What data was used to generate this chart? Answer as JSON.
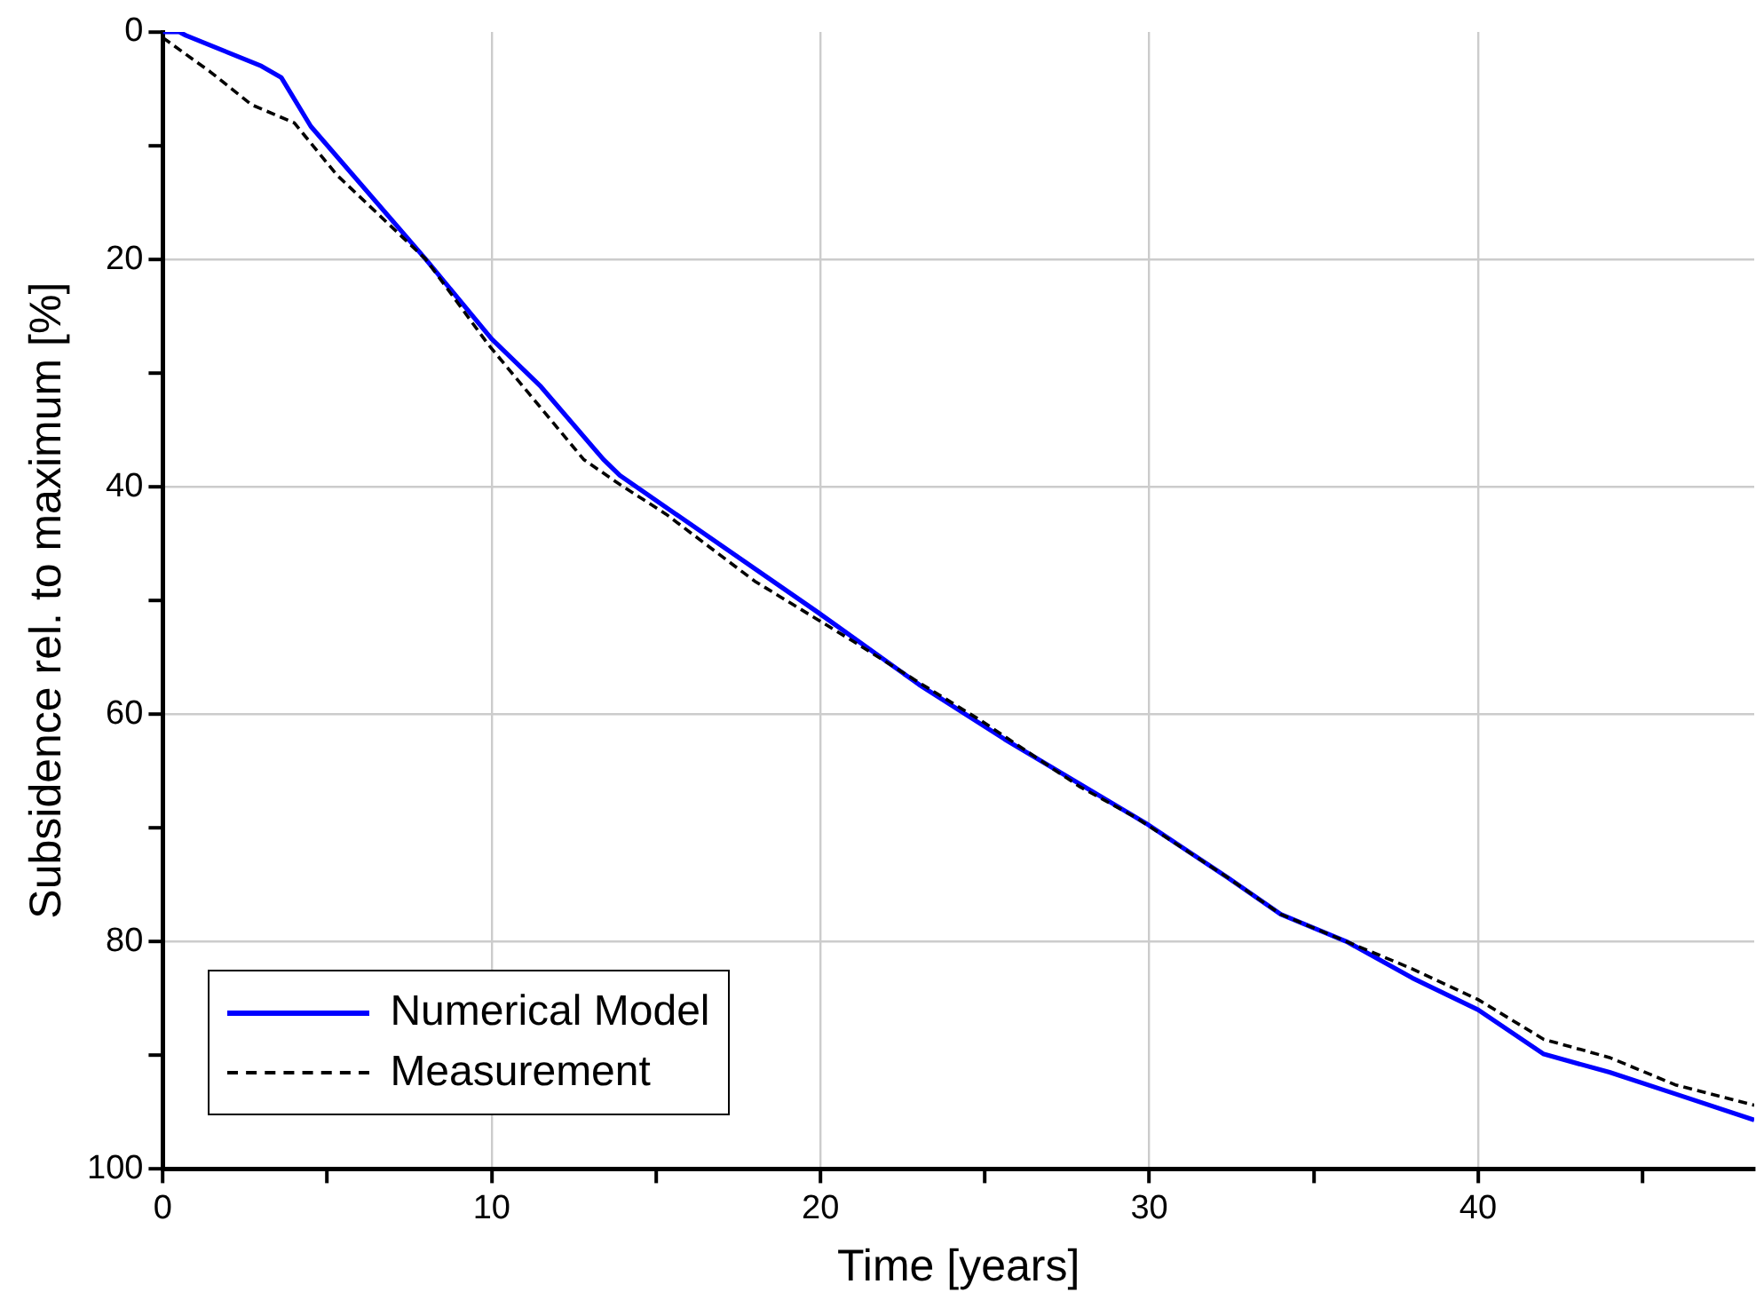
{
  "chart_data": {
    "type": "line",
    "xlabel": "Time [years]",
    "ylabel": "Subsidence rel. to maximum [%]",
    "xlim": [
      0,
      48.4
    ],
    "ylim": [
      100,
      0
    ],
    "xticks": [
      0,
      {
        "value": 5,
        "label": null
      },
      10,
      {
        "value": 15,
        "label": null
      },
      20,
      {
        "value": 25,
        "label": null
      },
      30,
      {
        "value": 35,
        "label": null
      },
      40,
      {
        "value": 45,
        "label": null
      }
    ],
    "yticks": [
      0,
      {
        "value": 10,
        "label": null
      },
      20,
      {
        "value": 30,
        "label": null
      },
      40,
      {
        "value": 50,
        "label": null
      },
      60,
      {
        "value": 70,
        "label": null
      },
      80,
      {
        "value": 90,
        "label": null
      },
      100
    ],
    "grid": true,
    "legend": "bottom left",
    "marker": "none",
    "series": [
      {
        "name": "Numerical Model",
        "color": "#0000ff",
        "line_style": "solid",
        "x": [
          0,
          0.5,
          0.7,
          3.0,
          3.6,
          4.5,
          8,
          10,
          11.5,
          13.4,
          13.9,
          19.9,
          23,
          25.6,
          29.9,
          32.4,
          34,
          36,
          38,
          40,
          42,
          44,
          46,
          48.4
        ],
        "values": [
          0,
          0,
          0.3,
          3.0,
          4.0,
          8.3,
          20,
          27,
          31.2,
          37.6,
          39,
          51,
          57.4,
          62.2,
          69.6,
          74.4,
          77.6,
          80,
          83.2,
          86,
          89.9,
          91.5,
          93.4,
          95.7
        ]
      },
      {
        "name": "Measurement",
        "color": "#000000",
        "line_style": "dashed",
        "x": [
          0,
          1.44,
          2.7,
          4.0,
          5.3,
          8,
          9.9,
          12.8,
          13.9,
          15.3,
          18,
          21,
          23.1,
          24.9,
          27.9,
          29.6,
          32.4,
          34,
          36,
          38,
          40,
          42,
          44,
          46,
          48.4
        ],
        "values": [
          0.5,
          3.5,
          6.4,
          8.0,
          12.6,
          20,
          27.5,
          37.6,
          39.8,
          42.4,
          48.3,
          53.6,
          57.4,
          60.6,
          66.4,
          69.1,
          74.4,
          77.6,
          80,
          82.4,
          85.1,
          88.6,
          90.2,
          92.6,
          94.4
        ]
      }
    ]
  }
}
